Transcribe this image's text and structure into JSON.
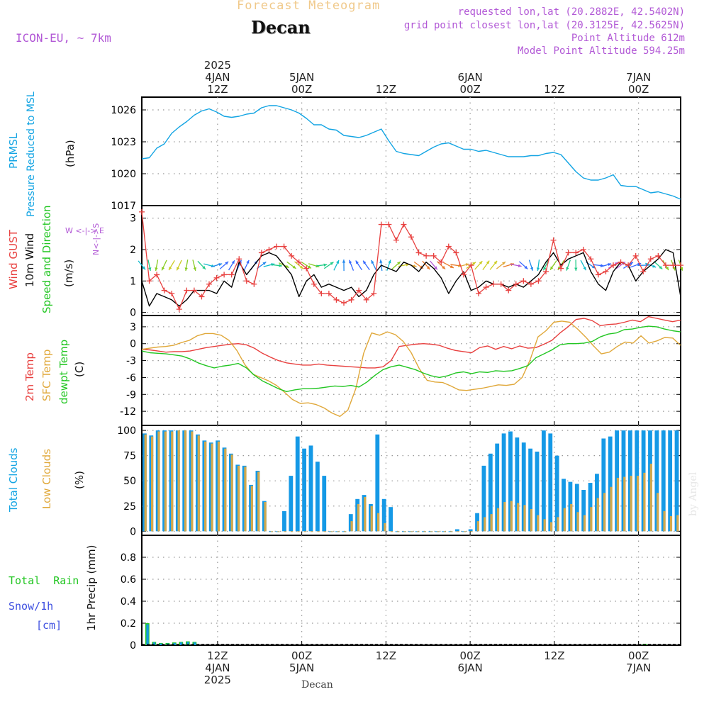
{
  "header": {
    "forecast_title": "Forecast Meteogram",
    "location": "Decan",
    "model": "ICON-EU, ~ 7km",
    "requested": "requested lon,lat (20.2882E, 42.5402N)",
    "gridpoint": "grid point closest lon,lat (20.3125E, 42.5625N)",
    "point_alt": "Point Altitude 612m",
    "model_alt": "Model Point Altitude 594.25m",
    "footer_location": "Decan",
    "watermark": "by Angel"
  },
  "colors": {
    "pressure": "#12a4e3",
    "gust": "#e8403f",
    "wind": "#000000",
    "t2m": "#e8403f",
    "tsfc": "#e0a83a",
    "dewpt": "#22c622",
    "total_clouds": "#1599e6",
    "low_clouds": "#d4a94a",
    "rain": "#22c622",
    "snow": "#3d4fe0",
    "purple": "#b259d6",
    "title_orange": "#f0c98a"
  },
  "panel_labels": {
    "pressure": [
      "PRMSL",
      "Pressure Reduced to MSL",
      "(hPa)"
    ],
    "wind": [
      "Wind GUST",
      "10m Wind",
      "Speed and Direction",
      "(m/s)"
    ],
    "compass": {
      "n": "N",
      "s": "S",
      "w": "W",
      "e": "E",
      "vert": "N<-|->S",
      "horiz": "W <-|-> E"
    },
    "temperature": [
      "2m Temp",
      "SFC Temp",
      "dewpt Temp",
      "(C)"
    ],
    "clouds": [
      "Total Clouds",
      "Low Clouds",
      "(%)"
    ],
    "precip": {
      "rain": "Total  Rain",
      "snow": "Snow/1h",
      "cm": "[cm]",
      "axis": "1hr Precip (mm)"
    }
  },
  "chart_data": [
    {
      "id": "time_axis",
      "type": "axis",
      "x_unit": "hour",
      "x_range": [
        0,
        64
      ],
      "top_ticks": [
        {
          "x": 9,
          "lines": [
            "2025",
            "4JAN",
            "12Z"
          ]
        },
        {
          "x": 19,
          "lines": [
            "5JAN",
            "00Z"
          ]
        },
        {
          "x": 29,
          "lines": [
            "12Z"
          ]
        },
        {
          "x": 39,
          "lines": [
            "6JAN",
            "00Z"
          ]
        },
        {
          "x": 49,
          "lines": [
            "12Z"
          ]
        },
        {
          "x": 59,
          "lines": [
            "7JAN",
            "00Z"
          ]
        }
      ],
      "bottom_ticks": [
        {
          "x": 9,
          "lines": [
            "12Z",
            "4JAN",
            "2025"
          ]
        },
        {
          "x": 19,
          "lines": [
            "00Z",
            "5JAN"
          ]
        },
        {
          "x": 29,
          "lines": [
            "12Z"
          ]
        },
        {
          "x": 39,
          "lines": [
            "00Z",
            "6JAN"
          ]
        },
        {
          "x": 49,
          "lines": [
            "12Z"
          ]
        },
        {
          "x": 59,
          "lines": [
            "00Z",
            "7JAN"
          ]
        }
      ]
    },
    {
      "id": "pressure",
      "type": "line",
      "ylabel": "(hPa)",
      "ylim": [
        1017,
        1027.2
      ],
      "yticks": [
        1017,
        1020,
        1023,
        1026
      ],
      "series": [
        {
          "name": "PRMSL",
          "values": [
            1021.4,
            1021.5,
            1022.4,
            1022.8,
            1023.8,
            1024.4,
            1024.9,
            1025.5,
            1025.9,
            1026.1,
            1025.8,
            1025.4,
            1025.3,
            1025.4,
            1025.6,
            1025.7,
            1026.2,
            1026.4,
            1026.4,
            1026.2,
            1026.0,
            1025.7,
            1025.2,
            1024.6,
            1024.6,
            1024.2,
            1024.1,
            1023.6,
            1023.5,
            1023.4,
            1023.6,
            1023.9,
            1024.2,
            1023.1,
            1022.1,
            1021.9,
            1021.8,
            1021.7,
            1022.1,
            1022.5,
            1022.8,
            1022.9,
            1022.6,
            1022.3,
            1022.3,
            1022.1,
            1022.2,
            1022.0,
            1021.8,
            1021.6,
            1021.6,
            1021.6,
            1021.7,
            1021.7,
            1021.9,
            1022.0,
            1021.8,
            1021.0,
            1020.2,
            1019.6,
            1019.4,
            1019.4,
            1019.6,
            1019.9,
            1018.9,
            1018.8,
            1018.8,
            1018.5,
            1018.2,
            1018.3,
            1018.1,
            1017.9,
            1017.6
          ]
        }
      ]
    },
    {
      "id": "wind",
      "type": "line",
      "ylabel": "(m/s)",
      "ylim": [
        -0.1,
        3.4
      ],
      "yticks": [
        0,
        1,
        2,
        3
      ],
      "series": [
        {
          "name": "Wind GUST",
          "marker": "+",
          "values": [
            3.2,
            1.0,
            1.2,
            0.7,
            0.6,
            0.1,
            0.7,
            0.7,
            0.5,
            0.9,
            1.1,
            1.2,
            1.2,
            1.7,
            1.0,
            0.9,
            1.9,
            2.0,
            2.1,
            2.1,
            1.8,
            1.6,
            1.4,
            0.9,
            0.6,
            0.6,
            0.4,
            0.3,
            0.4,
            0.7,
            0.4,
            0.6,
            2.8,
            2.8,
            2.3,
            2.8,
            2.4,
            1.9,
            1.8,
            1.8,
            1.6,
            2.1,
            1.9,
            1.2,
            1.5,
            0.6,
            0.8,
            0.9,
            0.9,
            0.7,
            0.9,
            1.0,
            0.9,
            1.0,
            1.3,
            2.3,
            1.4,
            1.9,
            1.9,
            2.0,
            1.7,
            1.2,
            1.3,
            1.5,
            1.6,
            1.5,
            1.8,
            1.3,
            1.7,
            1.8,
            1.5,
            1.5,
            1.5
          ]
        },
        {
          "name": "10m Wind",
          "values": [
            1.0,
            0.2,
            0.6,
            0.5,
            0.4,
            0.2,
            0.4,
            0.7,
            0.7,
            0.7,
            0.6,
            1.0,
            0.8,
            1.6,
            1.2,
            1.5,
            1.8,
            1.9,
            1.8,
            1.5,
            1.2,
            0.5,
            1.0,
            1.2,
            0.8,
            0.9,
            0.8,
            0.7,
            0.8,
            0.5,
            0.7,
            1.2,
            1.5,
            1.4,
            1.3,
            1.6,
            1.5,
            1.3,
            1.6,
            1.4,
            1.1,
            0.6,
            1.0,
            1.3,
            0.7,
            0.8,
            1.0,
            0.9,
            0.9,
            0.8,
            0.9,
            0.8,
            1.0,
            1.2,
            1.6,
            1.9,
            1.5,
            1.7,
            1.8,
            1.9,
            1.3,
            0.9,
            0.7,
            1.3,
            1.6,
            1.5,
            1.0,
            1.3,
            1.5,
            1.7,
            2.0,
            1.9,
            0.5
          ]
        }
      ]
    },
    {
      "id": "temperature",
      "type": "line",
      "ylabel": "(C)",
      "ylim": [
        -14.5,
        5
      ],
      "yticks": [
        -12,
        -9,
        -6,
        -3,
        0,
        3
      ],
      "series": [
        {
          "name": "2m Temp",
          "values": [
            -1.0,
            -1.1,
            -1.3,
            -1.5,
            -1.4,
            -1.4,
            -1.3,
            -1.0,
            -0.7,
            -0.5,
            -0.3,
            -0.1,
            0.0,
            -0.2,
            -0.8,
            -1.7,
            -2.4,
            -3.0,
            -3.4,
            -3.6,
            -3.8,
            -3.8,
            -3.6,
            -3.8,
            -3.9,
            -4.0,
            -4.1,
            -4.2,
            -4.3,
            -4.3,
            -4.1,
            -3.0,
            -0.5,
            -0.3,
            -0.1,
            0.0,
            -0.1,
            -0.3,
            -0.8,
            -1.2,
            -1.4,
            -1.6,
            -0.7,
            -0.4,
            -1.0,
            -0.5,
            -0.9,
            -0.4,
            -0.8,
            -0.7,
            -0.1,
            0.6,
            1.9,
            3.0,
            4.3,
            4.5,
            4.1,
            3.2,
            3.4,
            3.5,
            3.8,
            4.2,
            3.9,
            4.8,
            4.5,
            4.2,
            3.9,
            4.2
          ]
        },
        {
          "name": "SFC Temp",
          "values": [
            -1.0,
            -0.8,
            -0.6,
            -0.5,
            -0.3,
            0.2,
            0.6,
            1.4,
            1.8,
            1.8,
            1.5,
            0.6,
            -1.2,
            -3.7,
            -5.4,
            -6.0,
            -6.6,
            -7.4,
            -8.6,
            -9.9,
            -10.6,
            -10.5,
            -10.8,
            -11.4,
            -12.3,
            -12.9,
            -11.8,
            -8.0,
            -1.7,
            1.9,
            1.5,
            2.1,
            1.6,
            0.4,
            -1.6,
            -4.4,
            -6.5,
            -6.8,
            -6.9,
            -7.5,
            -8.2,
            -8.3,
            -8.1,
            -7.9,
            -7.6,
            -7.3,
            -7.4,
            -7.2,
            -6.0,
            -2.9,
            1.2,
            2.3,
            3.8,
            4.0,
            3.8,
            2.6,
            1.2,
            -0.4,
            -1.8,
            -1.5,
            -0.5,
            0.3,
            0.1,
            1.4,
            0.1,
            0.5,
            1.1,
            1.0,
            -0.3
          ]
        },
        {
          "name": "dewpt Temp",
          "values": [
            -1.3,
            -1.6,
            -1.7,
            -1.8,
            -2.0,
            -2.2,
            -2.7,
            -3.4,
            -3.9,
            -4.3,
            -4.0,
            -3.8,
            -3.5,
            -4.3,
            -5.6,
            -6.6,
            -7.3,
            -8.0,
            -8.5,
            -8.2,
            -8.0,
            -8.0,
            -7.9,
            -7.7,
            -7.5,
            -7.6,
            -7.4,
            -7.7,
            -6.8,
            -5.6,
            -4.6,
            -4.1,
            -3.8,
            -4.2,
            -4.6,
            -5.2,
            -5.7,
            -6.0,
            -5.7,
            -5.2,
            -5.0,
            -5.3,
            -5.0,
            -5.1,
            -4.8,
            -4.9,
            -4.8,
            -4.4,
            -3.9,
            -2.5,
            -1.8,
            -1.1,
            -0.2,
            0.0,
            0.0,
            0.1,
            0.4,
            1.2,
            1.7,
            1.9,
            2.5,
            2.6,
            2.9,
            3.1,
            3.0,
            2.6,
            2.3,
            2.1
          ]
        }
      ]
    },
    {
      "id": "clouds",
      "type": "bar",
      "ylabel": "(%)",
      "ylim": [
        -4,
        105
      ],
      "yticks": [
        0,
        25,
        50,
        75,
        100
      ],
      "series": [
        {
          "name": "Total Clouds",
          "values": [
            97,
            95,
            100,
            100,
            100,
            100,
            100,
            100,
            96,
            90,
            88,
            90,
            83,
            77,
            66,
            65,
            46,
            60,
            30,
            0,
            0,
            20,
            55,
            94,
            82,
            85,
            69,
            55,
            0,
            0,
            0,
            17,
            32,
            36,
            27,
            96,
            32,
            24,
            0,
            0,
            0,
            0,
            0,
            0,
            0,
            0,
            0,
            2,
            0,
            2,
            18,
            65,
            77,
            87,
            97,
            99,
            93,
            88,
            82,
            79,
            100,
            97,
            75,
            52,
            49,
            47,
            41,
            48,
            57,
            92,
            94,
            100,
            100,
            100,
            100,
            100,
            100,
            100,
            100,
            100,
            100
          ]
        },
        {
          "name": "Low Clouds",
          "values": [
            96,
            94,
            99,
            99,
            99,
            100,
            100,
            99,
            95,
            89,
            87,
            89,
            82,
            76,
            65,
            64,
            45,
            59,
            29,
            0,
            0,
            0,
            0,
            0,
            0,
            0,
            0,
            0,
            0,
            0,
            0,
            10,
            27,
            34,
            25,
            18,
            8,
            0,
            0,
            0,
            0,
            0,
            0,
            0,
            0,
            0,
            0,
            0,
            0,
            0,
            10,
            14,
            17,
            23,
            29,
            30,
            28,
            26,
            22,
            16,
            12,
            9,
            14,
            23,
            27,
            19,
            16,
            24,
            33,
            38,
            44,
            53,
            54,
            55,
            55,
            58,
            67,
            38,
            20,
            15,
            16,
            16
          ]
        }
      ]
    },
    {
      "id": "precip",
      "type": "bar",
      "ylabel": "1hr Precip (mm)",
      "ylim": [
        0,
        1
      ],
      "yticks": [
        0,
        0.2,
        0.4,
        0.6,
        0.8
      ],
      "series": [
        {
          "name": "Total Rain",
          "values": [
            0.2,
            0.03,
            0.02,
            0.02,
            0.025,
            0.03,
            0.035,
            0.03
          ]
        },
        {
          "name": "Snow/1h",
          "values": [
            0.19,
            0.025,
            0.015,
            0.015,
            0.02,
            0.025,
            0.03,
            0.025
          ]
        }
      ]
    }
  ]
}
